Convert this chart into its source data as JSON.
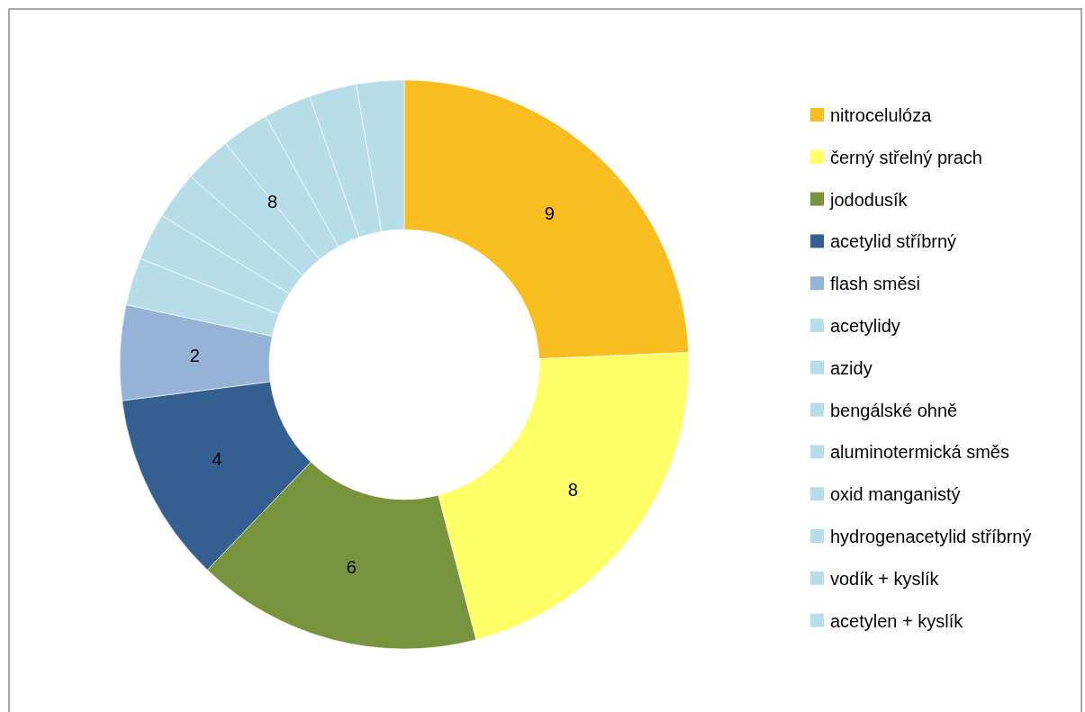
{
  "chart_data": {
    "type": "donut",
    "categories": [
      "nitrocelulóza",
      "černý střelný prach",
      "jododusík",
      "acetylid stříbrný",
      "flash směsi",
      "acetylidy",
      "azidy",
      "bengálské ohně",
      "aluminotermická směs",
      "oxid manganistý",
      "hydrogenacetylid stříbrný",
      "vodík + kyslík",
      "acetylen + kyslík"
    ],
    "values": [
      9,
      8,
      6,
      4,
      2,
      1,
      1,
      1,
      1,
      1,
      1,
      1,
      1
    ],
    "colors": [
      "#f8bd1f",
      "#ffff66",
      "#77933c",
      "#355f91",
      "#95b3d7",
      "#b7dee8",
      "#b7dee8",
      "#b7dee8",
      "#b7dee8",
      "#b7dee8",
      "#b7dee8",
      "#b7dee8",
      "#b7dee8"
    ],
    "value_labels": [
      "9",
      "8",
      "6",
      "4",
      "2",
      null,
      null,
      null,
      null,
      null,
      null,
      null,
      null
    ],
    "annotations": [
      "8"
    ],
    "legend": "right"
  }
}
